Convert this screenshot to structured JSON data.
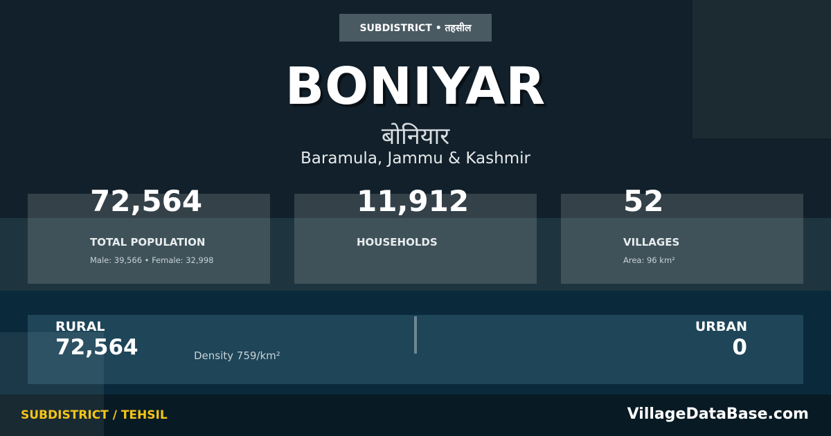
{
  "badge": "SUBDISTRICT • तहसील",
  "title": "BONIYAR",
  "title_hindi": "बोनियार",
  "location": "Baramula, Jammu & Kashmir",
  "stats": [
    {
      "value": "72,564",
      "label": "TOTAL POPULATION",
      "sub": "Male: 39,566 • Female: 32,998"
    },
    {
      "value": "11,912",
      "label": "HOUSEHOLDS",
      "sub": ""
    },
    {
      "value": "52",
      "label": "VILLAGES",
      "sub": "Area: 96 km²"
    }
  ],
  "rural": {
    "label": "RURAL",
    "value": "72,564"
  },
  "urban": {
    "label": "URBAN",
    "value": "0"
  },
  "density": "Density 759/km²",
  "footer": {
    "left": "SUBDISTRICT / TEHSIL",
    "right": "VillageDataBase.com"
  },
  "colors": {
    "accent": "#f5c518",
    "background": "#11202a"
  }
}
